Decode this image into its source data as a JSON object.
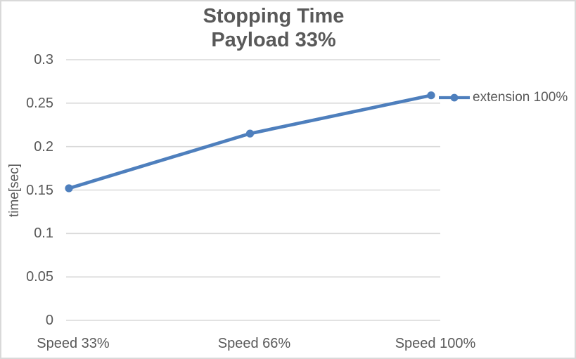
{
  "chart_data": {
    "type": "line",
    "title": "Stopping Time",
    "subtitle": "Payload 33%",
    "categories": [
      "Speed 33%",
      "Speed 66%",
      "Speed 100%"
    ],
    "series": [
      {
        "name": "extension 100%",
        "values": [
          0.152,
          0.215,
          0.259
        ],
        "color": "#4e7fbd",
        "marker": "circle"
      }
    ],
    "xlabel": "",
    "ylabel": "time[sec]",
    "ylim": [
      0,
      0.3
    ],
    "yticks": [
      0,
      0.05,
      0.1,
      0.15,
      0.2,
      0.25,
      0.3
    ],
    "ytick_labels": [
      "0",
      "0.05",
      "0.1",
      "0.15",
      "0.2",
      "0.25",
      "0.3"
    ],
    "grid": "horizontal gridlines only",
    "legend_position": "right of last data point",
    "colors": {
      "text": "#595959",
      "gridline": "#d9d9d9",
      "chart_border": "#d9d9d9",
      "background": "#ffffff"
    }
  }
}
